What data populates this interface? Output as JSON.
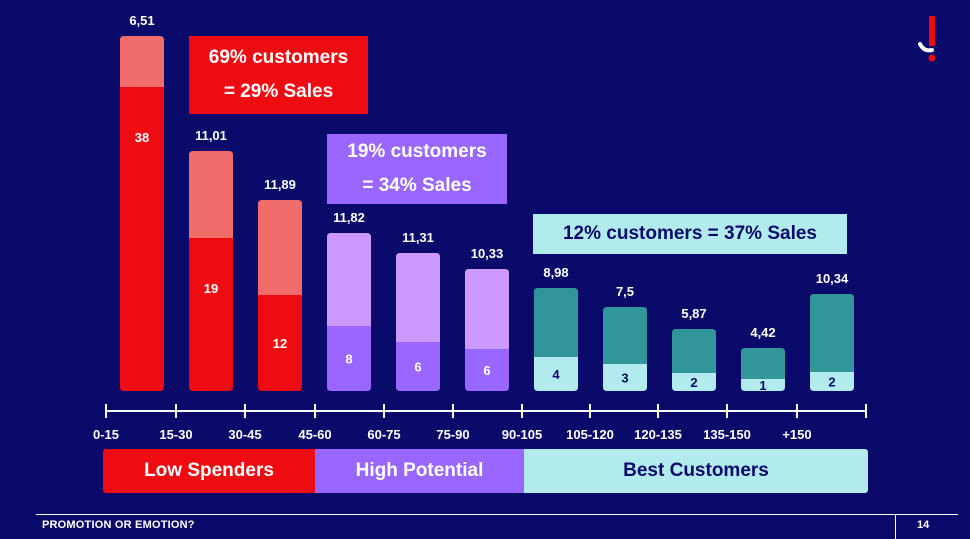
{
  "chart_data": {
    "type": "bar",
    "stacked": true,
    "categories": [
      "0-15",
      "15-30",
      "30-45",
      "45-60",
      "60-75",
      "75-90",
      "90-105",
      "105-120",
      "120-135",
      "135-150",
      "+150"
    ],
    "series": [
      {
        "name": "bottom",
        "values": [
          38,
          19,
          12,
          8,
          6,
          6,
          4,
          3,
          2,
          1,
          2
        ]
      },
      {
        "name": "total_label",
        "values": [
          "6,51",
          "11,01",
          "11,89",
          "11,82",
          "11,31",
          "10,33",
          "8,98",
          "7,5",
          "5,87",
          "4,42",
          "10,34"
        ]
      }
    ],
    "totals": [
      6.51,
      11.01,
      11.89,
      11.82,
      11.31,
      10.33,
      8.98,
      7.5,
      5.87,
      4.42,
      10.34
    ],
    "bottom_labels": [
      "38",
      "19",
      "12",
      "8",
      "6",
      "6",
      "4",
      "3",
      "2",
      "1",
      "2"
    ],
    "group_of_bar": [
      "low",
      "low",
      "low",
      "high",
      "high",
      "high",
      "best",
      "best",
      "best",
      "best",
      "best"
    ],
    "colors": {
      "low_bottom": "#ee0b11",
      "low_top": "#f16d6c",
      "high_bottom": "#9966ff",
      "high_top": "#cc99ff",
      "best_bottom": "#b2ebed",
      "best_top": "#30969a",
      "label_dark": "#0a0a6b",
      "label_light": "#ffffff"
    }
  },
  "callouts": {
    "low_line1": "69% customers",
    "low_line2": "= 29% Sales",
    "high_line1": "19% customers",
    "high_line2": "= 34% Sales",
    "best": "12% customers = 37% Sales"
  },
  "segments": {
    "low": "Low Spenders",
    "high": "High Potential",
    "best": "Best Customers"
  },
  "footer": {
    "title": "PROMOTION OR EMOTION?",
    "page": "14"
  },
  "colors": {
    "background": "#0a0a6b",
    "red": "#ee0b11",
    "purple": "#9966ff",
    "teal_light": "#b2ebed"
  }
}
